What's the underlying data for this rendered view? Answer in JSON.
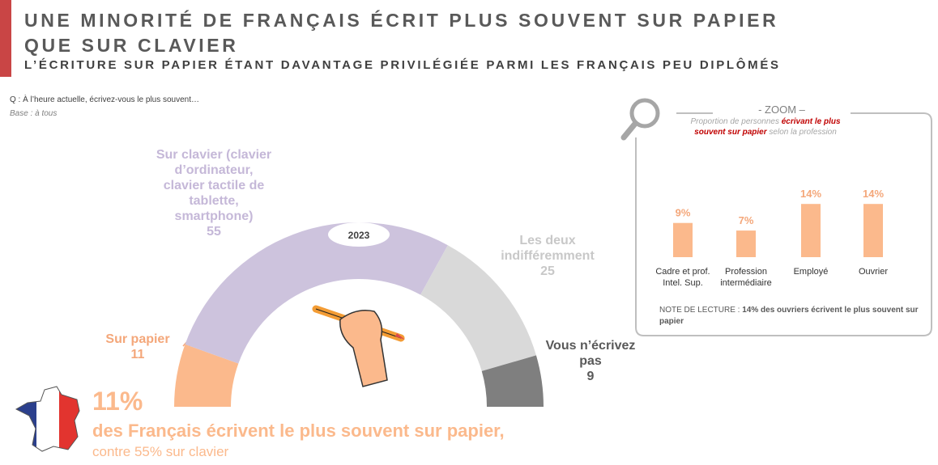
{
  "header": {
    "title_line1": "UNE MINORITÉ DE FRANÇAIS ÉCRIT PLUS SOUVENT SUR PAPIER",
    "title_line2": "QUE SUR CLAVIER",
    "subtitle": "L’ÉCRITURE SUR PAPIER ÉTANT DAVANTAGE PRIVILÉGIÉE PARMI LES FRANÇAIS PEU DIPLÔMÉS"
  },
  "question": "Q : À l’heure actuelle, écrivez-vous le plus souvent…",
  "base": "Base : à tous",
  "chart_data": [
    {
      "type": "pie",
      "center_label": "2023",
      "categories": [
        "Sur papier",
        "Sur clavier (clavier d’ordinateur, clavier tactile de tablette, smartphone)",
        "Les deux indifféremment",
        "Vous n’écrivez pas"
      ],
      "values": [
        11,
        55,
        25,
        9
      ],
      "colors": [
        "#fbb98c",
        "#cdc3dd",
        "#d9d9d9",
        "#7f7f7f"
      ]
    },
    {
      "type": "bar",
      "title": "- ZOOM –",
      "subtitle_parts": [
        "Proportion de personnes ",
        "écrivant le plus souvent sur papier",
        " selon la profession"
      ],
      "categories": [
        "Cadre et prof. Intel. Sup.",
        "Profession intermédiaire",
        "Employé",
        "Ouvrier"
      ],
      "values": [
        9,
        7,
        14,
        14
      ],
      "value_labels": [
        "9%",
        "7%",
        "14%",
        "14%"
      ],
      "color": "#fbb98c",
      "note_parts": [
        "NOTE DE LECTURE : ",
        "14% des ouvriers écrivent le plus souvent sur papier"
      ]
    }
  ],
  "highlight": {
    "big": "11%",
    "line1": "des Français écrivent le plus souvent sur papier,",
    "line2": "contre 55% sur clavier"
  }
}
